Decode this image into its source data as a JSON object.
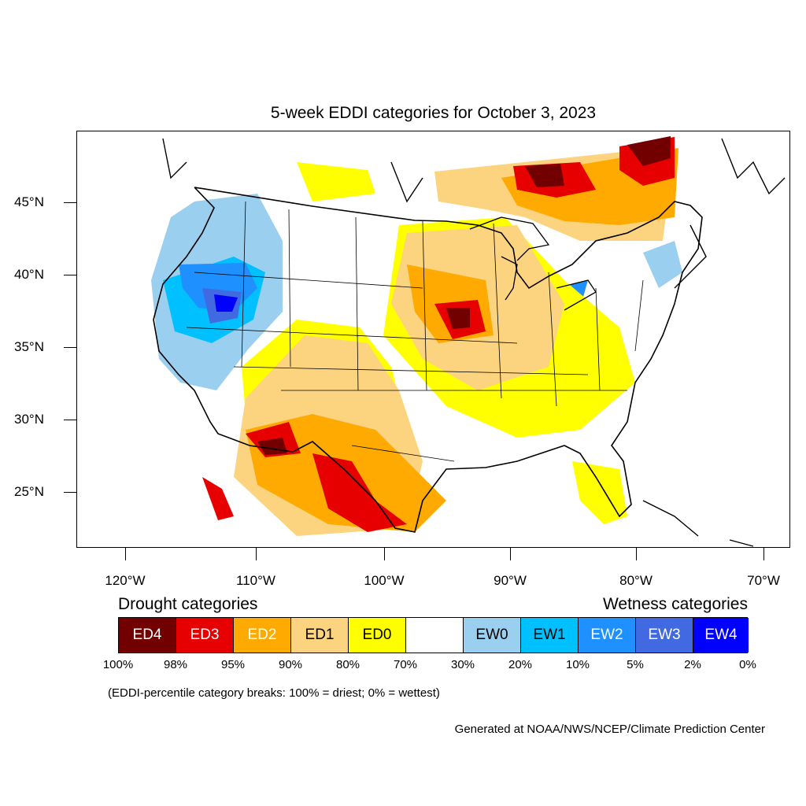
{
  "title": "5-week EDDI categories for October 3, 2023",
  "lat_labels": [
    "45°N",
    "40°N",
    "35°N",
    "30°N",
    "25°N"
  ],
  "lon_labels": [
    "120°W",
    "110°W",
    "100°W",
    "90°W",
    "80°W",
    "70°W"
  ],
  "legend": {
    "drought_heading": "Drought categories",
    "wetness_heading": "Wetness categories",
    "categories": [
      {
        "label": "ED4",
        "color": "#730000",
        "text_color": "#ffffff"
      },
      {
        "label": "ED3",
        "color": "#e60000",
        "text_color": "#ffffff"
      },
      {
        "label": "ED2",
        "color": "#ffaa00",
        "text_color": "#ffffff"
      },
      {
        "label": "ED1",
        "color": "#fcd37f",
        "text_color": "#000000"
      },
      {
        "label": "ED0",
        "color": "#ffff00",
        "text_color": "#000000"
      },
      {
        "label": "",
        "color": "#ffffff",
        "text_color": "#000000"
      },
      {
        "label": "EW0",
        "color": "#9bcfef",
        "text_color": "#000000"
      },
      {
        "label": "EW1",
        "color": "#00c0ff",
        "text_color": "#000000"
      },
      {
        "label": "EW2",
        "color": "#1e90ff",
        "text_color": "#ffffff"
      },
      {
        "label": "EW3",
        "color": "#4169e1",
        "text_color": "#ffffff"
      },
      {
        "label": "EW4",
        "color": "#0000ff",
        "text_color": "#ffffff"
      }
    ],
    "breaks": [
      "100%",
      "98%",
      "95%",
      "90%",
      "80%",
      "70%",
      "30%",
      "20%",
      "10%",
      "5%",
      "2%",
      "0%"
    ]
  },
  "note": "(EDDI-percentile category breaks: 100% = driest; 0% = wettest)",
  "credit": "Generated at NOAA/NWS/NCEP/Climate Prediction Center"
}
